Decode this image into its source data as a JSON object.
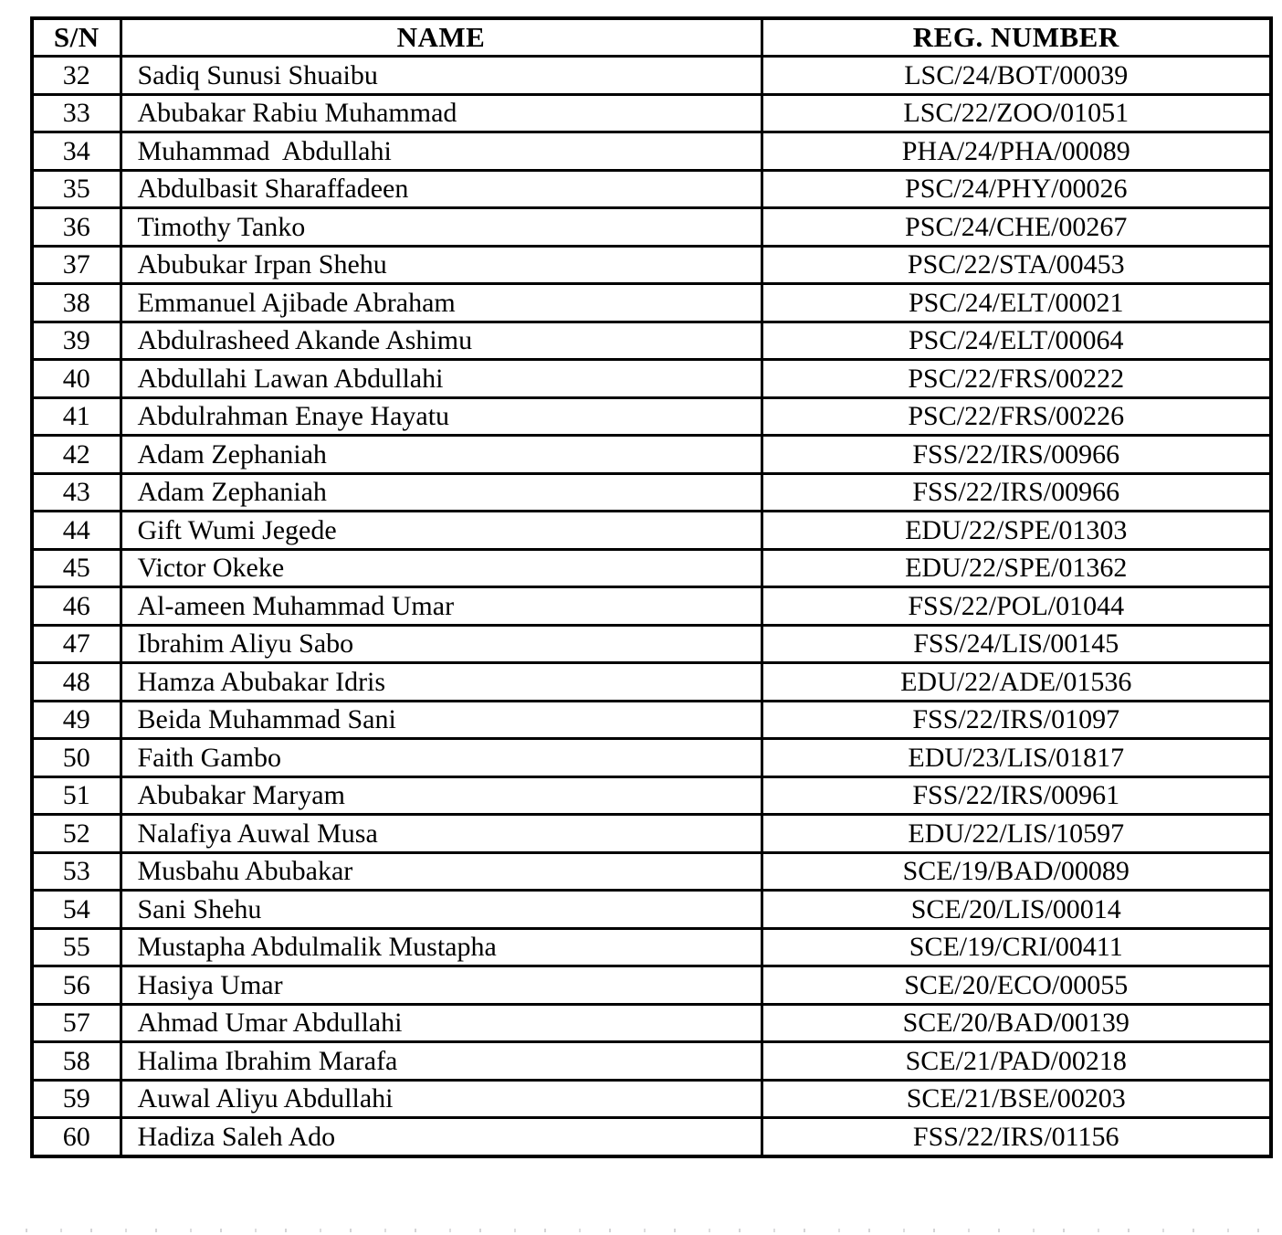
{
  "table": {
    "columns": [
      {
        "key": "sn",
        "label": "S/N"
      },
      {
        "key": "name",
        "label": "NAME"
      },
      {
        "key": "reg",
        "label": "REG. NUMBER"
      }
    ],
    "rows": [
      {
        "sn": "32",
        "name": "Sadiq Sunusi Shuaibu",
        "reg": "LSC/24/BOT/00039"
      },
      {
        "sn": "33",
        "name": "Abubakar Rabiu Muhammad",
        "reg": "LSC/22/ZOO/01051"
      },
      {
        "sn": "34",
        "name": "Muhammad  Abdullahi",
        "reg": "PHA/24/PHA/00089"
      },
      {
        "sn": "35",
        "name": "Abdulbasit Sharaffadeen",
        "reg": "PSC/24/PHY/00026"
      },
      {
        "sn": "36",
        "name": "Timothy Tanko",
        "reg": "PSC/24/CHE/00267"
      },
      {
        "sn": "37",
        "name": "Abubukar Irpan Shehu",
        "reg": "PSC/22/STA/00453"
      },
      {
        "sn": "38",
        "name": "Emmanuel Ajibade Abraham",
        "reg": "PSC/24/ELT/00021"
      },
      {
        "sn": "39",
        "name": "Abdulrasheed Akande Ashimu",
        "reg": "PSC/24/ELT/00064"
      },
      {
        "sn": "40",
        "name": "Abdullahi Lawan Abdullahi",
        "reg": "PSC/22/FRS/00222"
      },
      {
        "sn": "41",
        "name": "Abdulrahman Enaye Hayatu",
        "reg": "PSC/22/FRS/00226"
      },
      {
        "sn": "42",
        "name": "Adam Zephaniah",
        "reg": "FSS/22/IRS/00966"
      },
      {
        "sn": "43",
        "name": "Adam Zephaniah",
        "reg": "FSS/22/IRS/00966"
      },
      {
        "sn": "44",
        "name": "Gift Wumi Jegede",
        "reg": "EDU/22/SPE/01303"
      },
      {
        "sn": "45",
        "name": "Victor Okeke",
        "reg": "EDU/22/SPE/01362"
      },
      {
        "sn": "46",
        "name": "Al-ameen Muhammad Umar",
        "reg": "FSS/22/POL/01044"
      },
      {
        "sn": "47",
        "name": "Ibrahim Aliyu Sabo",
        "reg": "FSS/24/LIS/00145"
      },
      {
        "sn": "48",
        "name": "Hamza Abubakar Idris",
        "reg": "EDU/22/ADE/01536"
      },
      {
        "sn": "49",
        "name": "Beida Muhammad Sani",
        "reg": "FSS/22/IRS/01097"
      },
      {
        "sn": "50",
        "name": "Faith Gambo",
        "reg": "EDU/23/LIS/01817"
      },
      {
        "sn": "51",
        "name": "Abubakar Maryam",
        "reg": "FSS/22/IRS/00961"
      },
      {
        "sn": "52",
        "name": "Nalafiya Auwal Musa",
        "reg": "EDU/22/LIS/10597"
      },
      {
        "sn": "53",
        "name": "Musbahu Abubakar",
        "reg": "SCE/19/BAD/00089"
      },
      {
        "sn": "54",
        "name": "Sani Shehu",
        "reg": "SCE/20/LIS/00014"
      },
      {
        "sn": "55",
        "name": "Mustapha Abdulmalik Mustapha",
        "reg": "SCE/19/CRI/00411"
      },
      {
        "sn": "56",
        "name": "Hasiya Umar",
        "reg": "SCE/20/ECO/00055"
      },
      {
        "sn": "57",
        "name": "Ahmad Umar Abdullahi",
        "reg": "SCE/20/BAD/00139"
      },
      {
        "sn": "58",
        "name": "Halima Ibrahim Marafa",
        "reg": "SCE/21/PAD/00218"
      },
      {
        "sn": "59",
        "name": "Auwal Aliyu Abdullahi",
        "reg": "SCE/21/BSE/00203"
      },
      {
        "sn": "60",
        "name": "Hadiza Saleh Ado",
        "reg": "FSS/22/IRS/01156"
      }
    ]
  },
  "colors": {
    "text": "#000000",
    "border": "#000000",
    "background": "#ffffff"
  }
}
